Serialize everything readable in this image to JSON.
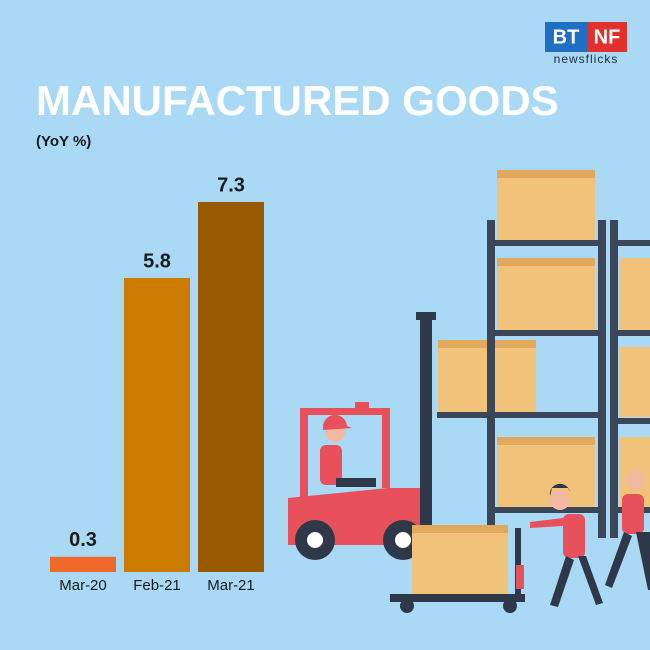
{
  "logo": {
    "left": "BT",
    "right": "NF",
    "tagline": "newsflicks"
  },
  "chart_data": {
    "type": "bar",
    "title": "MANUFACTURED GOODS",
    "subtitle": "(YoY %)",
    "categories": [
      "Mar-20",
      "Feb-21",
      "Mar-21"
    ],
    "values": [
      0.3,
      5.8,
      7.3
    ],
    "colors": [
      "#ef6a2a",
      "#cc7a00",
      "#9a5a00"
    ]
  }
}
